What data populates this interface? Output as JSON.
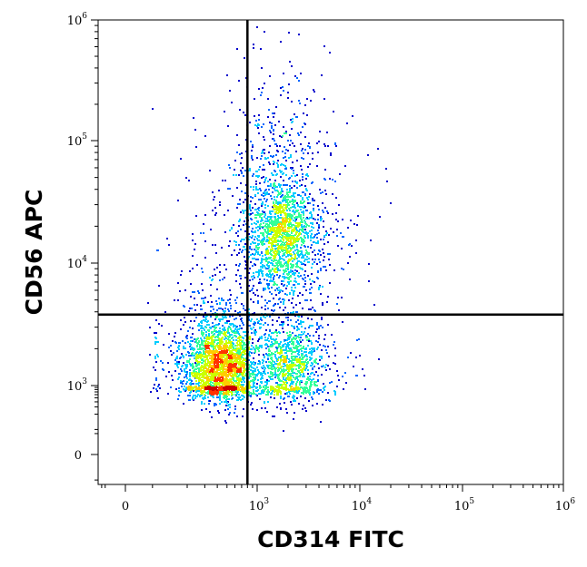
{
  "chart_data": {
    "type": "scatter",
    "subtype": "flow-cytometry-density-dot-plot",
    "title": "",
    "xlabel": "CD314 FITC",
    "ylabel": "CD56 APC",
    "x_scale": "biexponential",
    "y_scale": "biexponential",
    "xlim": [
      -200,
      1000000
    ],
    "ylim": [
      -100,
      1000000
    ],
    "x_ticks": [
      {
        "value": 0,
        "base": "0",
        "exp": ""
      },
      {
        "value": 1000,
        "base": "10",
        "exp": "3"
      },
      {
        "value": 10000,
        "base": "10",
        "exp": "4"
      },
      {
        "value": 100000,
        "base": "10",
        "exp": "5"
      },
      {
        "value": 1000000,
        "base": "10",
        "exp": "6"
      }
    ],
    "y_ticks": [
      {
        "value": 0,
        "base": "0",
        "exp": ""
      },
      {
        "value": 1000,
        "base": "10",
        "exp": "3"
      },
      {
        "value": 10000,
        "base": "10",
        "exp": "4"
      },
      {
        "value": 100000,
        "base": "10",
        "exp": "5"
      },
      {
        "value": 1000000,
        "base": "10",
        "exp": "6"
      }
    ],
    "quadrant_gates": {
      "x": 800,
      "y": 3800
    },
    "grid": false,
    "legend": "none",
    "color_scale": [
      "#0000cc",
      "#0066ff",
      "#00ccff",
      "#33ff99",
      "#ccff00",
      "#ffcc00",
      "#ff3300",
      "#cc0000"
    ],
    "populations": [
      {
        "center_x": 420,
        "center_y": 1500,
        "spread_x_dec": 0.17,
        "spread_y_dec": 0.18,
        "events": 2600
      },
      {
        "center_x": 1700,
        "center_y": 17000,
        "spread_x_dec": 0.17,
        "spread_y_dec": 0.22,
        "events": 1700
      },
      {
        "center_x": 2000,
        "center_y": 1500,
        "spread_x_dec": 0.16,
        "spread_y_dec": 0.18,
        "events": 1100
      },
      {
        "center_x": 1500,
        "center_y": 45000,
        "spread_x_dec": 0.25,
        "spread_y_dec": 0.45,
        "events": 450
      }
    ]
  }
}
